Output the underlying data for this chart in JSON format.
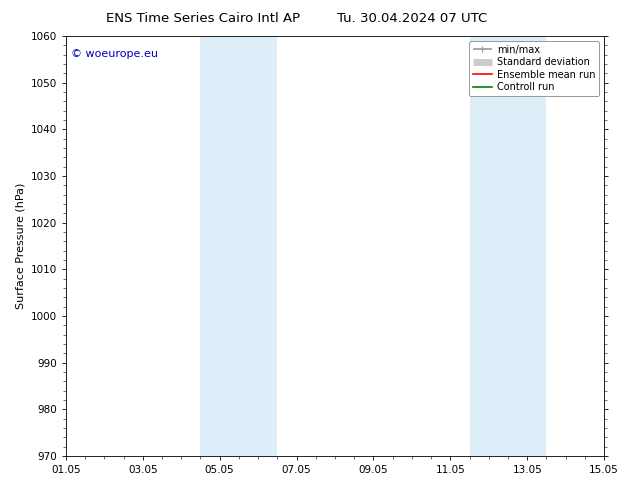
{
  "title_left": "ENS Time Series Cairo Intl AP",
  "title_right": "Tu. 30.04.2024 07 UTC",
  "ylabel": "Surface Pressure (hPa)",
  "ylim": [
    970,
    1060
  ],
  "yticks": [
    970,
    980,
    990,
    1000,
    1010,
    1020,
    1030,
    1040,
    1050,
    1060
  ],
  "xtick_labels": [
    "01.05",
    "03.05",
    "05.05",
    "07.05",
    "09.05",
    "11.05",
    "13.05",
    "15.05"
  ],
  "xmin": 0,
  "xmax": 14,
  "shaded_regions": [
    {
      "xmin": 3.5,
      "xmax": 5.5,
      "color": "#ddeef8"
    },
    {
      "xmin": 10.5,
      "xmax": 12.5,
      "color": "#ddeef8"
    }
  ],
  "watermark_text": "© woeurope.eu",
  "watermark_color": "#0000bb",
  "legend_items": [
    {
      "label": "min/max",
      "color": "#999999",
      "lw": 1.2,
      "type": "minmax"
    },
    {
      "label": "Standard deviation",
      "color": "#cccccc",
      "lw": 5,
      "type": "band"
    },
    {
      "label": "Ensemble mean run",
      "color": "#ff0000",
      "lw": 1.2,
      "type": "line"
    },
    {
      "label": "Controll run",
      "color": "#008000",
      "lw": 1.2,
      "type": "line"
    }
  ],
  "bg_color": "#ffffff",
  "title_fontsize": 9.5,
  "ylabel_fontsize": 8,
  "tick_fontsize": 7.5,
  "watermark_fontsize": 8,
  "legend_fontsize": 7
}
